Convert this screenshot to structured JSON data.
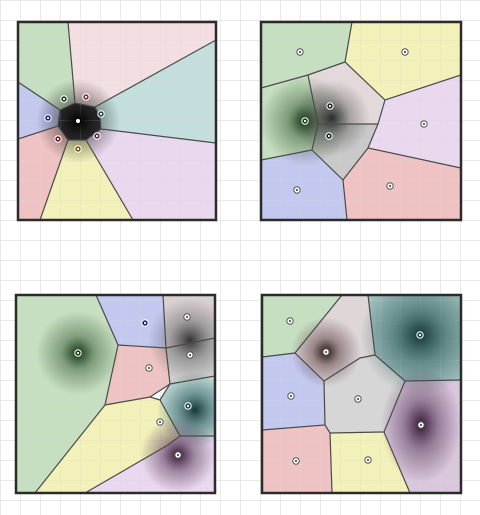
{
  "figure": {
    "background": "#ffffff",
    "grid_color": "#d6d6d6",
    "frame_color": "#2b2b2b",
    "edge_color": "#4a4a4a",
    "palette": {
      "green": "#c6dfc0",
      "pink": "#f3dfe1",
      "teal": "#c4dedd",
      "blue": "#c3c8ef",
      "red": "#efc3c3",
      "yellow": "#f2f1b9",
      "lavender": "#ead9ee",
      "gray": "#d8d8d8"
    }
  },
  "panels": [
    {
      "name": "top-left",
      "cells": [
        {
          "name": "green",
          "color": "green",
          "site": [
            64,
            99
          ],
          "dot": "#1f3b1f"
        },
        {
          "name": "pink",
          "color": "pink",
          "site": [
            86,
            97
          ],
          "dot": "#7a2e3a"
        },
        {
          "name": "teal",
          "color": "teal",
          "site": [
            101,
            114
          ],
          "dot": "#1e4a4a"
        },
        {
          "name": "blue",
          "color": "blue",
          "site": [
            48,
            118
          ],
          "dot": "#1a1f8a"
        },
        {
          "name": "red",
          "color": "red",
          "site": [
            58,
            139
          ],
          "dot": "#7a1a1a"
        },
        {
          "name": "yellow",
          "color": "yellow",
          "site": [
            78,
            149
          ],
          "dot": "#6a5a10"
        },
        {
          "name": "lavender",
          "color": "lavender",
          "site": [
            97,
            136
          ],
          "dot": "#5a2a5a"
        }
      ],
      "dark_sites": [
        [
          78,
          121
        ]
      ]
    },
    {
      "name": "top-right",
      "cells": [
        {
          "name": "green",
          "color": "green",
          "site": [
            300,
            52
          ],
          "dot": "#ffffff"
        },
        {
          "name": "yellow",
          "color": "yellow",
          "site": [
            405,
            52
          ],
          "dot": "#ffffff"
        },
        {
          "name": "green-2",
          "color": "green",
          "site": [
            305,
            121
          ],
          "dot": "#1f3b1f"
        },
        {
          "name": "gray",
          "color": "gray",
          "site": [
            330,
            106
          ],
          "dot": "#222222"
        },
        {
          "name": "gray-2",
          "color": "gray",
          "site": [
            329,
            136
          ],
          "dot": "#222222"
        },
        {
          "name": "lavender",
          "color": "lavender",
          "site": [
            424,
            124
          ],
          "dot": "#ffffff"
        },
        {
          "name": "blue",
          "color": "blue",
          "site": [
            297,
            190
          ],
          "dot": "#ffffff"
        },
        {
          "name": "red",
          "color": "red",
          "site": [
            390,
            186
          ],
          "dot": "#ffffff"
        }
      ],
      "dark_sites": []
    },
    {
      "name": "bottom-left",
      "cells": [
        {
          "name": "green",
          "color": "green",
          "site": [
            78,
            353
          ],
          "dot": "#1f3b1f"
        },
        {
          "name": "blue",
          "color": "blue",
          "site": [
            145,
            323
          ],
          "dot": "#1a1f8a"
        },
        {
          "name": "gray",
          "color": "gray",
          "site": [
            187,
            317
          ],
          "dot": "#ffffff"
        },
        {
          "name": "gray-2",
          "color": "gray",
          "site": [
            190,
            355
          ],
          "dot": "#ffffff"
        },
        {
          "name": "red",
          "color": "red",
          "site": [
            149,
            368
          ],
          "dot": "#ffffff"
        },
        {
          "name": "teal",
          "color": "teal",
          "site": [
            188,
            406
          ],
          "dot": "#1e4a4a"
        },
        {
          "name": "yellow",
          "color": "yellow",
          "site": [
            160,
            422
          ],
          "dot": "#ffffff"
        },
        {
          "name": "lavender",
          "color": "lavender",
          "site": [
            178,
            455
          ],
          "dot": "#ffffff"
        }
      ],
      "dark_sites": []
    },
    {
      "name": "bottom-right",
      "cells": [
        {
          "name": "green",
          "color": "green",
          "site": [
            290,
            321
          ],
          "dot": "#ffffff"
        },
        {
          "name": "gray",
          "color": "gray",
          "site": [
            326,
            352
          ],
          "dot": "#ffffff"
        },
        {
          "name": "teal",
          "color": "teal",
          "site": [
            420,
            335
          ],
          "dot": "#1e4a4a"
        },
        {
          "name": "blue",
          "color": "blue",
          "site": [
            291,
            396
          ],
          "dot": "#ffffff"
        },
        {
          "name": "gray-2",
          "color": "gray",
          "site": [
            358,
            399
          ],
          "dot": "#ffffff"
        },
        {
          "name": "lavender",
          "color": "lavender",
          "site": [
            421,
            425
          ],
          "dot": "#ffffff"
        },
        {
          "name": "red",
          "color": "red",
          "site": [
            296,
            461
          ],
          "dot": "#ffffff"
        },
        {
          "name": "yellow",
          "color": "yellow",
          "site": [
            368,
            460
          ],
          "dot": "#ffffff"
        }
      ],
      "dark_sites": []
    }
  ]
}
